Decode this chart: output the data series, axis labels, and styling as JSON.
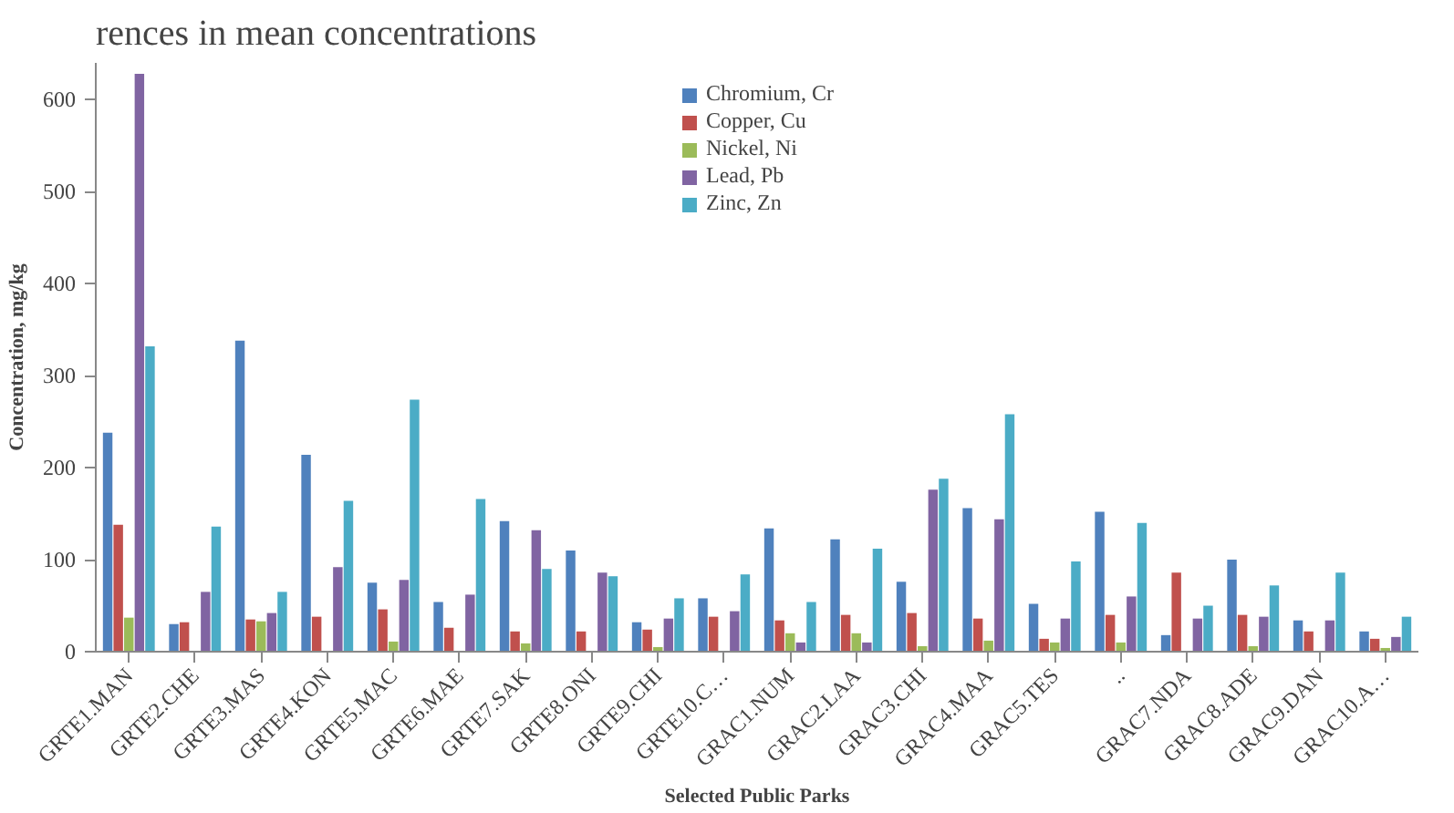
{
  "chart_data": {
    "type": "bar",
    "xlabel": "Selected Public Parks",
    "ylabel": "Concentration, mg/kg",
    "annotations": [
      "rences in mean concentrations"
    ],
    "categories": [
      "GRTE1.MAN",
      "GRTE2.CHE",
      "GRTE3.MAS",
      "GRTE4.KON",
      "GRTE5.MAC",
      "GRTE6.MAE",
      "GRTE7.SAK",
      "GRTE8.ONI",
      "GRTE9.CHI",
      "GRTE10.C…",
      "GRAC1.NUM",
      "GRAC2.LAA",
      "GRAC3.CHI",
      "GRAC4.MAA",
      "GRAC5.TES",
      "..",
      "GRAC7.NDA",
      "GRAC8.ADE",
      "GRAC9.DAN",
      "GRAC10.A…"
    ],
    "series": [
      {
        "name": "Chromium, Cr",
        "color": "#4f81bd",
        "values": [
          238,
          30,
          338,
          214,
          75,
          54,
          142,
          110,
          32,
          58,
          134,
          122,
          76,
          156,
          52,
          152,
          18,
          100,
          34,
          22
        ]
      },
      {
        "name": "Copper, Cu",
        "color": "#c0504d",
        "values": [
          138,
          32,
          35,
          38,
          46,
          26,
          22,
          22,
          24,
          38,
          34,
          40,
          42,
          36,
          14,
          40,
          86,
          40,
          22,
          14
        ]
      },
      {
        "name": "Nickel, Ni",
        "color": "#9bbb59",
        "values": [
          37,
          null,
          33,
          0,
          11,
          null,
          9,
          0,
          5,
          null,
          20,
          20,
          6,
          12,
          10,
          10,
          0,
          6,
          0,
          4
        ]
      },
      {
        "name": "Lead, Pb",
        "color": "#8064a2",
        "values": [
          628,
          65,
          42,
          92,
          78,
          62,
          132,
          86,
          36,
          44,
          10,
          10,
          176,
          144,
          36,
          60,
          36,
          38,
          34,
          16
        ]
      },
      {
        "name": "Zinc, Zn",
        "color": "#4bacc6",
        "values": [
          332,
          136,
          65,
          164,
          274,
          166,
          90,
          82,
          58,
          84,
          54,
          112,
          188,
          258,
          98,
          140,
          50,
          72,
          86,
          38
        ]
      }
    ],
    "ylim": [
      0,
      640
    ],
    "yticks": [
      0,
      100,
      200,
      300,
      400,
      500,
      600
    ],
    "grid": false,
    "legend": "top"
  }
}
